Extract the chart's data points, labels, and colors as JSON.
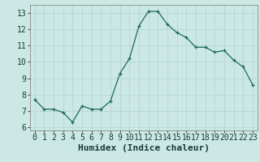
{
  "x": [
    0,
    1,
    2,
    3,
    4,
    5,
    6,
    7,
    8,
    9,
    10,
    11,
    12,
    13,
    14,
    15,
    16,
    17,
    18,
    19,
    20,
    21,
    22,
    23
  ],
  "y": [
    7.7,
    7.1,
    7.1,
    6.9,
    6.3,
    7.3,
    7.1,
    7.1,
    7.6,
    9.3,
    10.2,
    12.2,
    13.1,
    13.1,
    12.3,
    11.8,
    11.5,
    10.9,
    10.9,
    10.6,
    10.7,
    10.1,
    9.7,
    8.6
  ],
  "xlabel": "Humidex (Indice chaleur)",
  "xlim": [
    -0.5,
    23.5
  ],
  "ylim": [
    5.8,
    13.5
  ],
  "yticks": [
    6,
    7,
    8,
    9,
    10,
    11,
    12,
    13
  ],
  "xticks": [
    0,
    1,
    2,
    3,
    4,
    5,
    6,
    7,
    8,
    9,
    10,
    11,
    12,
    13,
    14,
    15,
    16,
    17,
    18,
    19,
    20,
    21,
    22,
    23
  ],
  "line_color": "#1a6b5a",
  "marker_color": "#1a6b5a",
  "bg_color": "#cce8e4",
  "grid_color": "#b8d8d4",
  "xlabel_fontsize": 8,
  "tick_fontsize": 7
}
